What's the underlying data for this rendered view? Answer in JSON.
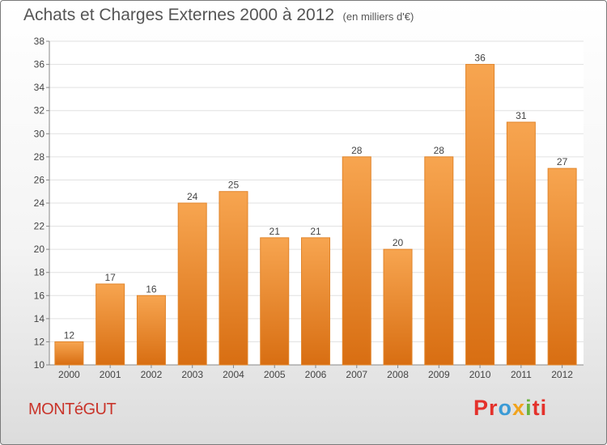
{
  "header": {
    "title": "Achats et Charges Externes 2000 à 2012",
    "subtitle": "(en milliers d'€)"
  },
  "footer": {
    "town": "MONTéGUT",
    "brand": "Proxiti"
  },
  "colors": {
    "bar_light": "#f7a550",
    "bar_dark": "#d86e12",
    "bar_edge": "#e1852b",
    "town_text": "#c9342a",
    "grid": "#e0e0e0"
  },
  "chart_data": {
    "type": "bar",
    "title": "Achats et Charges Externes 2000 à 2012",
    "subtitle": "(en milliers d'€)",
    "xlabel": "",
    "ylabel": "",
    "categories": [
      "2000",
      "2001",
      "2002",
      "2003",
      "2004",
      "2005",
      "2006",
      "2007",
      "2008",
      "2009",
      "2010",
      "2011",
      "2012"
    ],
    "values": [
      12,
      17,
      16,
      24,
      25,
      21,
      21,
      28,
      20,
      28,
      36,
      31,
      27
    ],
    "ylim": [
      10,
      38
    ],
    "yticks": [
      10,
      12,
      14,
      16,
      18,
      20,
      22,
      24,
      26,
      28,
      30,
      32,
      34,
      36,
      38
    ],
    "grid": true,
    "data_labels": true
  }
}
